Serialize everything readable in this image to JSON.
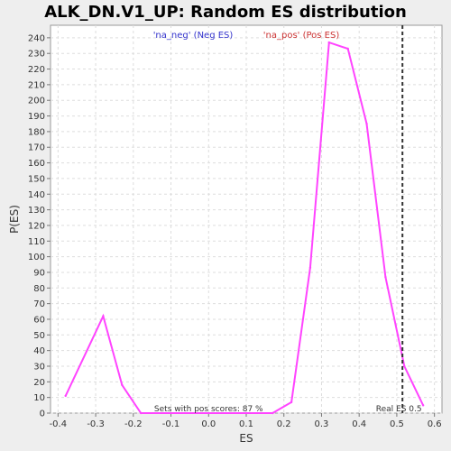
{
  "chart_data": {
    "type": "line",
    "title": "ALK_DN.V1_UP: Random ES distribution",
    "xlabel": "ES",
    "ylabel": "P(ES)",
    "xlim": [
      -0.42,
      0.62
    ],
    "ylim": [
      0,
      248
    ],
    "x_ticks": [
      -0.4,
      -0.3,
      -0.2,
      -0.1,
      0.0,
      0.1,
      0.2,
      0.3,
      0.4,
      0.5,
      0.6
    ],
    "x_tick_labels": [
      "-0.4",
      "-0.3",
      "-0.2",
      "-0.1",
      "0.0",
      "0.1",
      "0.2",
      "0.3",
      "0.4",
      "0.5",
      "0.6"
    ],
    "y_ticks": [
      0,
      10,
      20,
      30,
      40,
      50,
      60,
      70,
      80,
      90,
      100,
      110,
      120,
      130,
      140,
      150,
      160,
      170,
      180,
      190,
      200,
      210,
      220,
      230,
      240
    ],
    "y_tick_labels": [
      "0",
      "10",
      "20",
      "30",
      "40",
      "50",
      "60",
      "70",
      "80",
      "90",
      "100",
      "110",
      "120",
      "130",
      "140",
      "150",
      "160",
      "170",
      "180",
      "190",
      "200",
      "210",
      "220",
      "230",
      "240"
    ],
    "grid": true,
    "legend": [
      {
        "label": "'na_neg' (Neg ES)",
        "color": "#3333cc",
        "placement": "top-left"
      },
      {
        "label": "'na_pos' (Pos ES)",
        "color": "#cc3333",
        "placement": "top-center"
      }
    ],
    "series": [
      {
        "color": "#ff44ff",
        "x": [
          -0.38,
          -0.28,
          -0.23,
          -0.18,
          0.17,
          0.22,
          0.27,
          0.32,
          0.37,
          0.42,
          0.47,
          0.52,
          0.57
        ],
        "y": [
          11,
          62,
          18,
          0,
          0,
          7,
          93,
          237,
          233,
          185,
          87,
          30,
          5
        ]
      }
    ],
    "real_es": {
      "x": 0.515,
      "label": "Real ES 0.5",
      "color": "#333333"
    },
    "annotation": "Sets with pos scores: 87 %"
  }
}
